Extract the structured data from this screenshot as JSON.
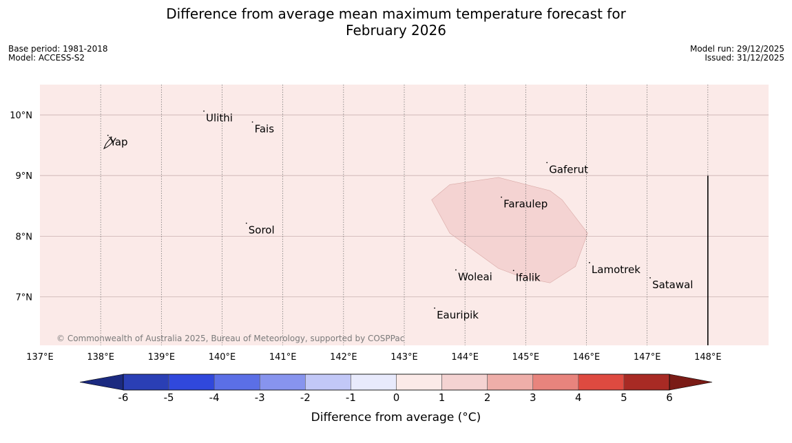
{
  "title": {
    "line1": "Difference from average mean maximum temperature forecast for",
    "line2": "February 2026"
  },
  "meta_left": {
    "base_period": "Base period: 1981-2018",
    "model": "Model: ACCESS-S2"
  },
  "meta_right": {
    "model_run": "Model run: 29/12/2025",
    "issued": "Issued: 31/12/2025"
  },
  "map": {
    "extent": {
      "lon": [
        137,
        149
      ],
      "lat": [
        6.2,
        10.5
      ]
    },
    "background_color": "#fbeae8",
    "anomaly_region_color": "#f4d3d2",
    "anomaly_region_polygon_lonlat": [
      [
        143.45,
        8.6
      ],
      [
        143.75,
        8.85
      ],
      [
        144.55,
        8.97
      ],
      [
        145.4,
        8.75
      ],
      [
        145.6,
        8.6
      ],
      [
        146.02,
        8.05
      ],
      [
        145.82,
        7.5
      ],
      [
        145.4,
        7.23
      ],
      [
        144.95,
        7.32
      ],
      [
        144.55,
        7.47
      ],
      [
        143.75,
        8.05
      ]
    ],
    "lat_ticks": [
      {
        "value": 10,
        "label": "10°N"
      },
      {
        "value": 9,
        "label": "9°N"
      },
      {
        "value": 8,
        "label": "8°N"
      },
      {
        "value": 7,
        "label": "7°N"
      }
    ],
    "lon_ticks": [
      {
        "value": 137,
        "label": "137°E"
      },
      {
        "value": 138,
        "label": "138°E"
      },
      {
        "value": 139,
        "label": "139°E"
      },
      {
        "value": 140,
        "label": "140°E"
      },
      {
        "value": 141,
        "label": "141°E"
      },
      {
        "value": 142,
        "label": "142°E"
      },
      {
        "value": 143,
        "label": "143°E"
      },
      {
        "value": 144,
        "label": "144°E"
      },
      {
        "value": 145,
        "label": "145°E"
      },
      {
        "value": 146,
        "label": "146°E"
      },
      {
        "value": 147,
        "label": "147°E"
      },
      {
        "value": 148,
        "label": "148°E"
      }
    ],
    "islands": [
      {
        "name": "Yap",
        "lon": 138.12,
        "lat": 9.55
      },
      {
        "name": "Ulithi",
        "lon": 139.7,
        "lat": 9.95
      },
      {
        "name": "Fais",
        "lon": 140.5,
        "lat": 9.77
      },
      {
        "name": "Gaferut",
        "lon": 145.35,
        "lat": 9.1
      },
      {
        "name": "Faraulep",
        "lon": 144.6,
        "lat": 8.53
      },
      {
        "name": "Sorol",
        "lon": 140.4,
        "lat": 8.1
      },
      {
        "name": "Lamotrek",
        "lon": 146.05,
        "lat": 7.45
      },
      {
        "name": "Woleai",
        "lon": 143.85,
        "lat": 7.33
      },
      {
        "name": "Ifalik",
        "lon": 144.8,
        "lat": 7.32
      },
      {
        "name": "Satawal",
        "lon": 147.05,
        "lat": 7.2
      },
      {
        "name": "Eauripik",
        "lon": 143.5,
        "lat": 6.7
      }
    ],
    "eez_boundary_line": {
      "lon": 148.0,
      "lat": [
        6.2,
        9.0
      ]
    },
    "copyright": "© Commonwealth of Australia 2025, Bureau of Meteorology, supported by COSPPac"
  },
  "colorbar": {
    "label": "Difference from average (°C)",
    "ticks": [
      "-6",
      "-5",
      "-4",
      "-3",
      "-2",
      "-1",
      "0",
      "1",
      "2",
      "3",
      "4",
      "5",
      "6"
    ],
    "under_color": "#1b2a80",
    "over_color": "#7a1b16",
    "bins": [
      {
        "from": -6,
        "to": -5,
        "color": "#2a3fb5"
      },
      {
        "from": -5,
        "to": -4,
        "color": "#3048dc"
      },
      {
        "from": -4,
        "to": -3,
        "color": "#5b6fe6"
      },
      {
        "from": -3,
        "to": -2,
        "color": "#8794ee"
      },
      {
        "from": -2,
        "to": -1,
        "color": "#c2c8f7"
      },
      {
        "from": -1,
        "to": 0,
        "color": "#e8eafc"
      },
      {
        "from": 0,
        "to": 1,
        "color": "#fbeae8"
      },
      {
        "from": 1,
        "to": 2,
        "color": "#f4d3d2"
      },
      {
        "from": 2,
        "to": 3,
        "color": "#eeaea9"
      },
      {
        "from": 3,
        "to": 4,
        "color": "#e8847d"
      },
      {
        "from": 4,
        "to": 5,
        "color": "#de4a40"
      },
      {
        "from": 5,
        "to": 6,
        "color": "#a82a24"
      }
    ]
  }
}
